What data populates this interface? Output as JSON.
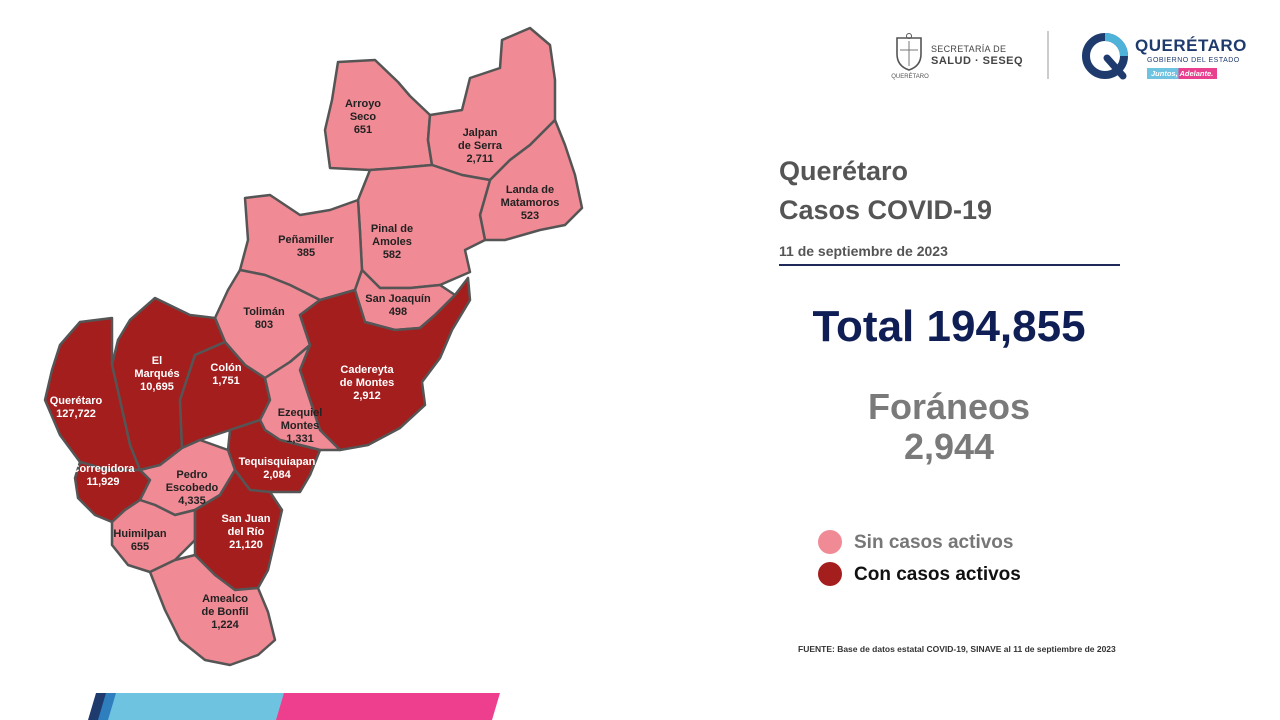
{
  "header": {
    "seal_caption": "QUERÉTARO",
    "sec_line1": "SECRETARÍA DE",
    "sec_line2": "SALUD · SESEQ",
    "gov_name": "QUERÉTARO",
    "gov_sub": "GOBIERNO DEL ESTADO",
    "gov_slogan": "Juntos, Adelante."
  },
  "title": {
    "line1": "Querétaro",
    "line2": "Casos COVID-19",
    "date": "11 de septiembre de 2023"
  },
  "total": {
    "label": "Total 194,855"
  },
  "foraneos": {
    "label": "Foráneos",
    "value": "2,944"
  },
  "legend": {
    "inactive": {
      "label": "Sin casos activos",
      "color": "#f08a94"
    },
    "active": {
      "label": "Con casos activos",
      "color": "#a51e1e"
    }
  },
  "source": "FUENTE: Base de datos estatal COVID-19, SINAVE al 11 de septiembre de 2023",
  "map": {
    "municipalities": [
      {
        "id": "arroyo-seco",
        "lines": [
          "Arroyo",
          "Seco"
        ],
        "value": "651",
        "active": false
      },
      {
        "id": "jalpan",
        "lines": [
          "Jalpan",
          "de Serra"
        ],
        "value": "2,711",
        "active": false
      },
      {
        "id": "landa",
        "lines": [
          "Landa de",
          "Matamoros"
        ],
        "value": "523",
        "active": false
      },
      {
        "id": "pinal",
        "lines": [
          "Pinal de",
          "Amoles"
        ],
        "value": "582",
        "active": false
      },
      {
        "id": "penamiller",
        "lines": [
          "Peñamiller"
        ],
        "value": "385",
        "active": false
      },
      {
        "id": "san-joaquin",
        "lines": [
          "San Joaquín"
        ],
        "value": "498",
        "active": false
      },
      {
        "id": "toliman",
        "lines": [
          "Tolimán"
        ],
        "value": "803",
        "active": false
      },
      {
        "id": "el-marques",
        "lines": [
          "El",
          "Marqués"
        ],
        "value": "10,695",
        "active": true
      },
      {
        "id": "colon",
        "lines": [
          "Colón"
        ],
        "value": "1,751",
        "active": true
      },
      {
        "id": "cadereyta",
        "lines": [
          "Cadereyta",
          "de Montes"
        ],
        "value": "2,912",
        "active": true
      },
      {
        "id": "queretaro",
        "lines": [
          "Querétaro"
        ],
        "value": "127,722",
        "active": true
      },
      {
        "id": "ezequiel",
        "lines": [
          "Ezequiel",
          "Montes"
        ],
        "value": "1,331",
        "active": false
      },
      {
        "id": "tequisquiapan",
        "lines": [
          "Tequisquiapan"
        ],
        "value": "2,084",
        "active": true
      },
      {
        "id": "corregidora",
        "lines": [
          "Corregidora"
        ],
        "value": "11,929",
        "active": true
      },
      {
        "id": "pedro-escobedo",
        "lines": [
          "Pedro",
          "Escobedo"
        ],
        "value": "4,335",
        "active": false
      },
      {
        "id": "huimilpan",
        "lines": [
          "Huimilpan"
        ],
        "value": "655",
        "active": false
      },
      {
        "id": "san-juan",
        "lines": [
          "San Juan",
          "del Río"
        ],
        "value": "21,120",
        "active": true
      },
      {
        "id": "amealco",
        "lines": [
          "Amealco",
          "de Bonfil"
        ],
        "value": "1,224",
        "active": false
      }
    ]
  }
}
